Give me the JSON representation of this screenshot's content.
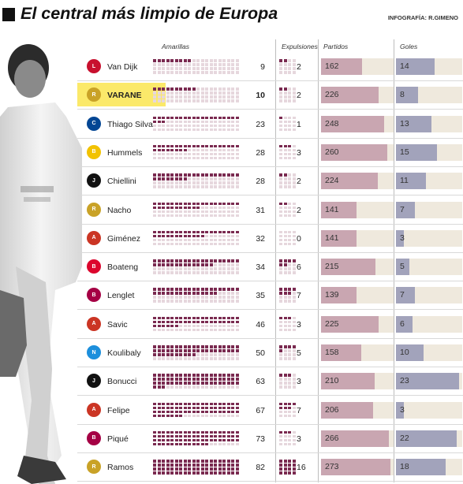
{
  "title": "El central más limpio de Europa",
  "credit": "INFOGRAFÍA: R.GIMENO",
  "colors": {
    "filled": "#7a2a50",
    "empty": "#e6d7dd",
    "partidos_bar": "#c9a6b1",
    "goles_bar": "#a2a3bb",
    "track": "#efe9dd",
    "highlight": "#fbe96a"
  },
  "chart_data": {
    "type": "table",
    "columns": [
      "Amarillas",
      "Expulsiones",
      "Partidos",
      "Goles"
    ],
    "rows": [
      {
        "player": "Van Dijk",
        "club_icon": "liverpool-crest",
        "amarillas": 9,
        "expulsiones": 2,
        "partidos": 162,
        "goles": 14
      },
      {
        "player": "VARANE",
        "club_icon": "real-madrid-crest",
        "amarillas": 10,
        "expulsiones": 2,
        "partidos": 226,
        "goles": 8,
        "highlight": true
      },
      {
        "player": "Thiago Silva",
        "club_icon": "chelsea-crest",
        "amarillas": 23,
        "expulsiones": 1,
        "partidos": 248,
        "goles": 13
      },
      {
        "player": "Hummels",
        "club_icon": "borussia-dortmund-crest",
        "amarillas": 28,
        "expulsiones": 3,
        "partidos": 260,
        "goles": 15
      },
      {
        "player": "Chiellini",
        "club_icon": "juventus-crest",
        "amarillas": 28,
        "expulsiones": 2,
        "partidos": 224,
        "goles": 11
      },
      {
        "player": "Nacho",
        "club_icon": "real-madrid-crest",
        "amarillas": 31,
        "expulsiones": 2,
        "partidos": 141,
        "goles": 7
      },
      {
        "player": "Giménez",
        "club_icon": "atletico-madrid-crest",
        "amarillas": 32,
        "expulsiones": 0,
        "partidos": 141,
        "goles": 3
      },
      {
        "player": "Boateng",
        "club_icon": "bayern-munich-crest",
        "amarillas": 34,
        "expulsiones": 6,
        "partidos": 215,
        "goles": 5
      },
      {
        "player": "Lenglet",
        "club_icon": "barcelona-crest",
        "amarillas": 35,
        "expulsiones": 7,
        "partidos": 139,
        "goles": 7
      },
      {
        "player": "Savic",
        "club_icon": "atletico-madrid-crest",
        "amarillas": 46,
        "expulsiones": 3,
        "partidos": 225,
        "goles": 6
      },
      {
        "player": "Koulibaly",
        "club_icon": "napoli-crest",
        "amarillas": 50,
        "expulsiones": 5,
        "partidos": 158,
        "goles": 10
      },
      {
        "player": "Bonucci",
        "club_icon": "juventus-crest",
        "amarillas": 63,
        "expulsiones": 3,
        "partidos": 210,
        "goles": 23
      },
      {
        "player": "Felipe",
        "club_icon": "atletico-madrid-crest",
        "amarillas": 67,
        "expulsiones": 7,
        "partidos": 206,
        "goles": 3
      },
      {
        "player": "Piqué",
        "club_icon": "barcelona-crest",
        "amarillas": 73,
        "expulsiones": 3,
        "partidos": 266,
        "goles": 22
      },
      {
        "player": "Ramos",
        "club_icon": "real-madrid-crest",
        "amarillas": 82,
        "expulsiones": 16,
        "partidos": 273,
        "goles": 18
      }
    ]
  }
}
